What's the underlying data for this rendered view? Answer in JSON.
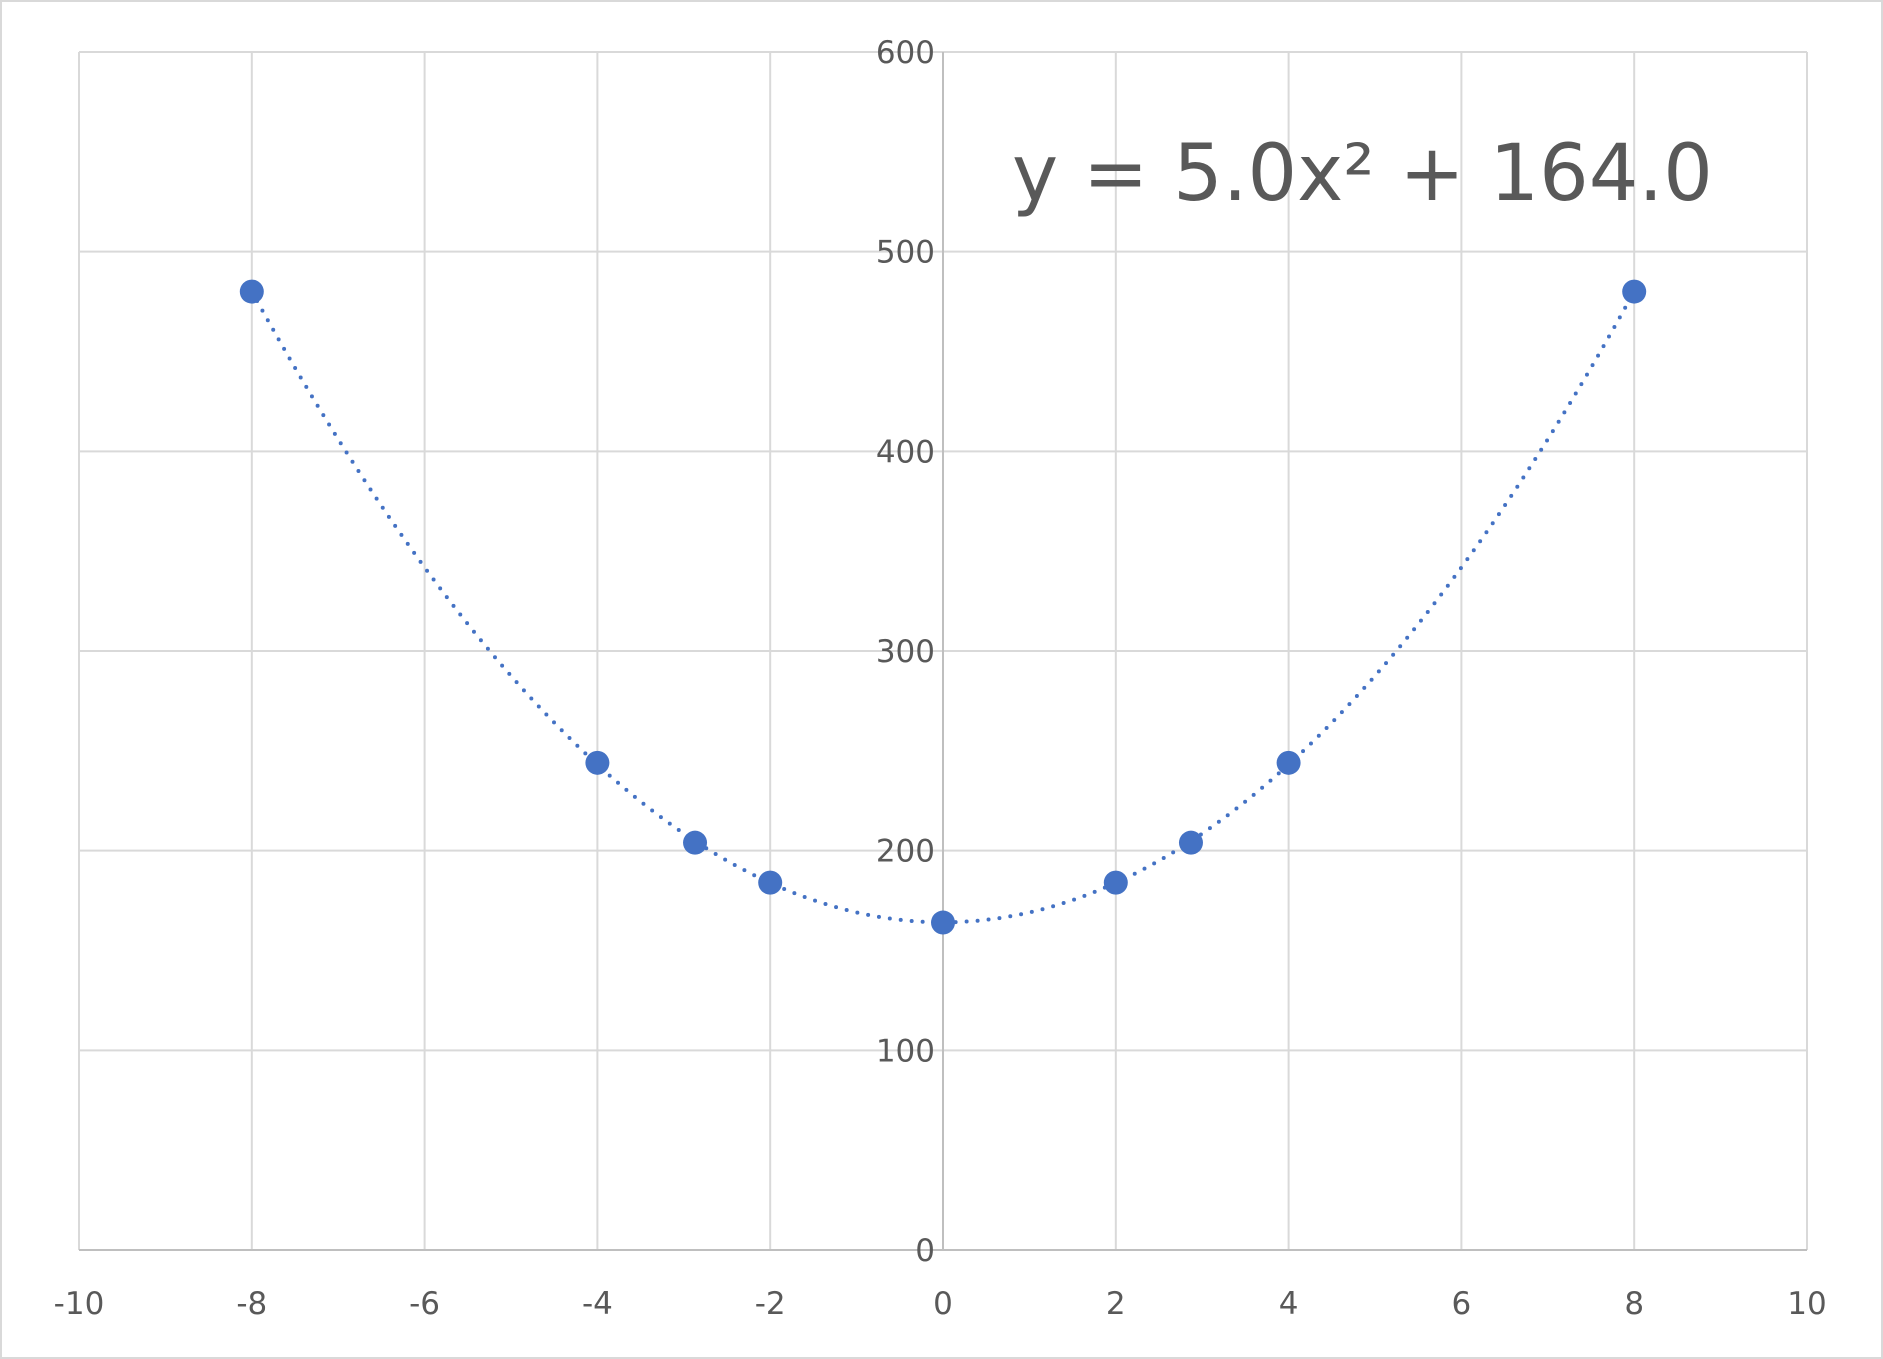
{
  "chart_data": {
    "type": "scatter",
    "x": [
      -8,
      -4,
      -2.87,
      -2,
      0,
      2,
      2.87,
      4,
      8
    ],
    "values": [
      480,
      244,
      204,
      184,
      164,
      184,
      204,
      244,
      480
    ],
    "color": "#4472c4",
    "xlim": [
      -10,
      10
    ],
    "xticks": [
      -10,
      -8,
      -6,
      -4,
      -2,
      0,
      2,
      4,
      6,
      8,
      10
    ],
    "ylim": [
      0,
      600
    ],
    "yticks": [
      0,
      100,
      200,
      300,
      400,
      500,
      600
    ],
    "grid": true,
    "trendline": {
      "order": 2,
      "label": "y = 5.0x² + 164.0"
    }
  }
}
